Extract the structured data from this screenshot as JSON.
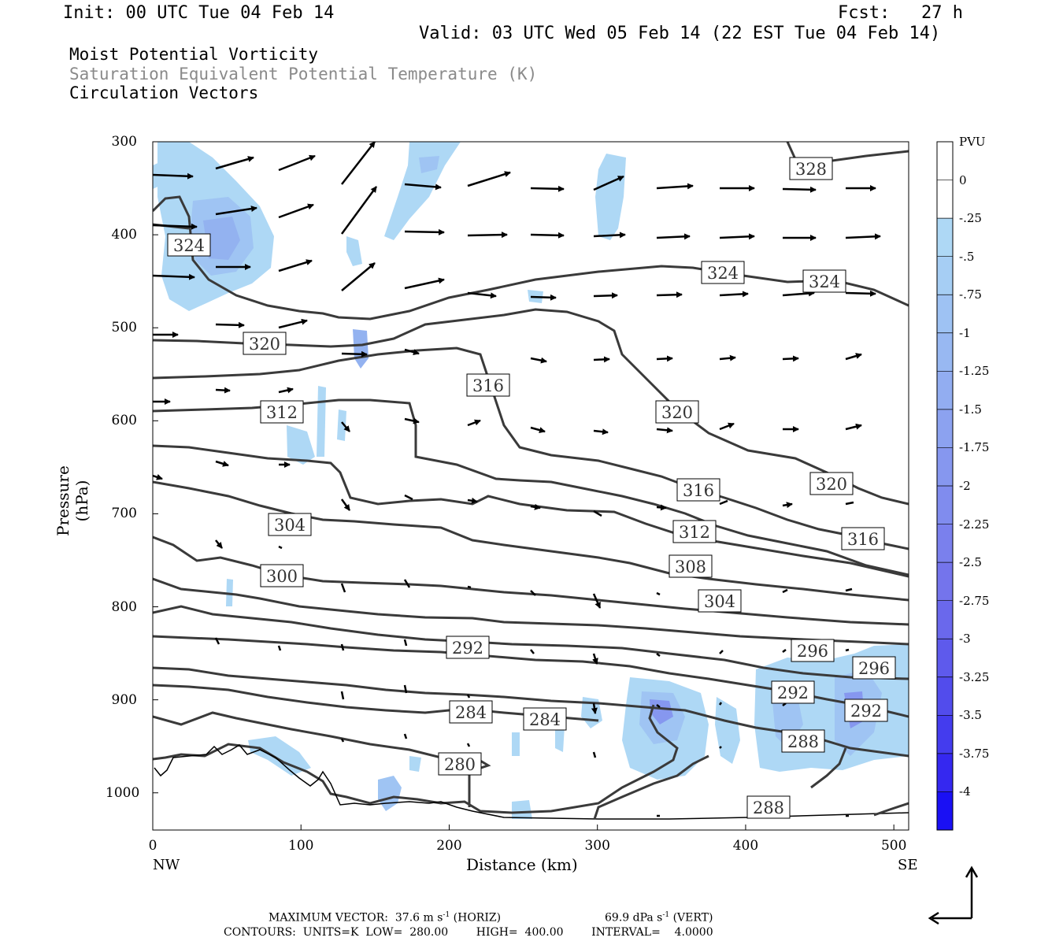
{
  "header": {
    "init": "Init: 00 UTC Tue 04 Feb 14",
    "fcst": "Fcst:   27 h",
    "valid": "Valid: 03 UTC Wed 05 Feb 14 (22 EST Tue 04 Feb 14)"
  },
  "legend_lines": {
    "mpv": "Moist Potential Vorticity",
    "theta": "Saturation Equivalent Potential Temperature (K)",
    "vectors": "Circulation Vectors"
  },
  "footer": {
    "max_vector": "MAXIMUM VECTOR:  37.6 m s",
    "max_vector_unit_exp": "-1",
    "max_vector_horiz": " (HORIZ)",
    "max_vector_vert_val": "69.9 dPa s",
    "max_vector_vert_exp": "-1",
    "max_vector_vert": " (VERT)",
    "contours": "CONTOURS:  UNITS=K  LOW=  280.00        HIGH=  400.00        INTERVAL=    4.0000"
  },
  "colors": {
    "contour": "#3a3a3a",
    "pv_light": "#aed8f5",
    "pv_mid": "#8fb4f0",
    "pv_deep": "#7a86e8"
  },
  "chart_data": {
    "type": "cross-section",
    "xlabel": "Distance (km)",
    "ylabel": "Pressure (hPa)",
    "x_ticks": [
      0,
      100,
      200,
      300,
      400,
      500
    ],
    "y_ticks": [
      300,
      400,
      500,
      600,
      700,
      800,
      900,
      1000
    ],
    "xlim": [
      0,
      510
    ],
    "ylim": [
      1040,
      300
    ],
    "x_end_labels": {
      "left": "NW",
      "right": "SE"
    },
    "colorbar": {
      "units": "PVU",
      "levels": [
        "0",
        "-.25",
        "-.5",
        "-.75",
        "-1",
        "-1.25",
        "-1.5",
        "-1.75",
        "-2",
        "-2.25",
        "-2.5",
        "-2.75",
        "-3",
        "-3.25",
        "-3.5",
        "-3.75",
        "-4"
      ],
      "colors": [
        "#ffffff",
        "#ffffff",
        "#aed8f5",
        "#a6cef4",
        "#9ec2f3",
        "#98b8f2",
        "#92adf1",
        "#8ca2f0",
        "#8697ef",
        "#808cee",
        "#7a80ed",
        "#7474ec",
        "#6a68ec",
        "#5e5aec",
        "#524cec",
        "#443cee",
        "#3528f0",
        "#1a10f4"
      ]
    },
    "contour_labels": [
      "328",
      "324",
      "324",
      "324",
      "320",
      "320",
      "320",
      "316",
      "316",
      "316",
      "312",
      "312",
      "308",
      "304",
      "304",
      "300",
      "296",
      "296",
      "292",
      "292",
      "292",
      "288",
      "288",
      "284",
      "284",
      "280"
    ],
    "contour_interval": 4,
    "contour_range": [
      280,
      400
    ]
  }
}
